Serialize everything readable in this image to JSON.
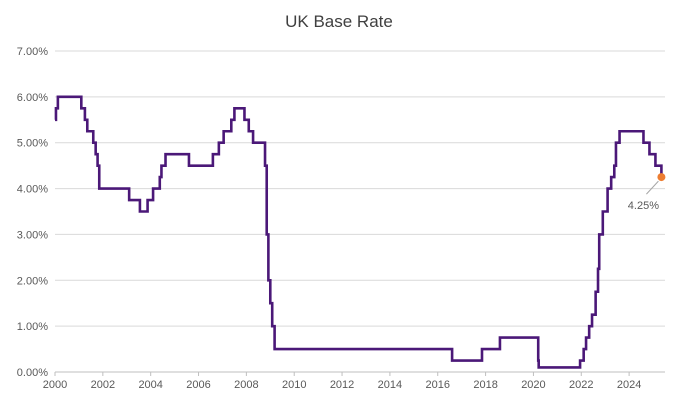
{
  "chart_data": {
    "type": "line",
    "title": "UK Base Rate",
    "xlabel": "",
    "ylabel": "",
    "xlim": [
      2000,
      2025.5
    ],
    "ylim": [
      0,
      7
    ],
    "y_ticks": [
      "0.00%",
      "1.00%",
      "2.00%",
      "3.00%",
      "4.00%",
      "5.00%",
      "6.00%",
      "7.00%"
    ],
    "x_ticks": [
      "2000",
      "2002",
      "2004",
      "2006",
      "2008",
      "2010",
      "2012",
      "2014",
      "2016",
      "2018",
      "2020",
      "2022",
      "2024"
    ],
    "grid": true,
    "legend": "none",
    "series": [
      {
        "color": "#4b1878",
        "step": true,
        "points": [
          [
            2000.0,
            5.5
          ],
          [
            2000.04,
            5.75
          ],
          [
            2000.12,
            6.0
          ],
          [
            2001.1,
            5.75
          ],
          [
            2001.25,
            5.5
          ],
          [
            2001.35,
            5.25
          ],
          [
            2001.6,
            5.0
          ],
          [
            2001.7,
            4.75
          ],
          [
            2001.78,
            4.5
          ],
          [
            2001.85,
            4.0
          ],
          [
            2003.1,
            3.75
          ],
          [
            2003.55,
            3.5
          ],
          [
            2003.87,
            3.75
          ],
          [
            2004.1,
            4.0
          ],
          [
            2004.38,
            4.25
          ],
          [
            2004.45,
            4.5
          ],
          [
            2004.62,
            4.75
          ],
          [
            2005.6,
            4.5
          ],
          [
            2006.6,
            4.75
          ],
          [
            2006.85,
            5.0
          ],
          [
            2007.05,
            5.25
          ],
          [
            2007.37,
            5.5
          ],
          [
            2007.5,
            5.75
          ],
          [
            2007.92,
            5.5
          ],
          [
            2008.1,
            5.25
          ],
          [
            2008.28,
            5.0
          ],
          [
            2008.78,
            4.5
          ],
          [
            2008.85,
            3.0
          ],
          [
            2008.92,
            2.0
          ],
          [
            2009.0,
            1.5
          ],
          [
            2009.08,
            1.0
          ],
          [
            2009.18,
            0.5
          ],
          [
            2016.6,
            0.25
          ],
          [
            2017.85,
            0.5
          ],
          [
            2018.6,
            0.75
          ],
          [
            2020.2,
            0.25
          ],
          [
            2020.22,
            0.1
          ],
          [
            2021.95,
            0.25
          ],
          [
            2022.1,
            0.5
          ],
          [
            2022.2,
            0.75
          ],
          [
            2022.33,
            1.0
          ],
          [
            2022.45,
            1.25
          ],
          [
            2022.6,
            1.75
          ],
          [
            2022.7,
            2.25
          ],
          [
            2022.75,
            3.0
          ],
          [
            2022.9,
            3.5
          ],
          [
            2023.1,
            4.0
          ],
          [
            2023.25,
            4.25
          ],
          [
            2023.38,
            4.5
          ],
          [
            2023.45,
            5.0
          ],
          [
            2023.6,
            5.25
          ],
          [
            2024.6,
            5.0
          ],
          [
            2024.85,
            4.75
          ],
          [
            2025.1,
            4.5
          ],
          [
            2025.35,
            4.25
          ]
        ]
      }
    ],
    "annotations": [
      {
        "x": 2025.35,
        "y": 4.25,
        "text": "4.25%",
        "marker_color": "#ed7d31"
      }
    ]
  }
}
